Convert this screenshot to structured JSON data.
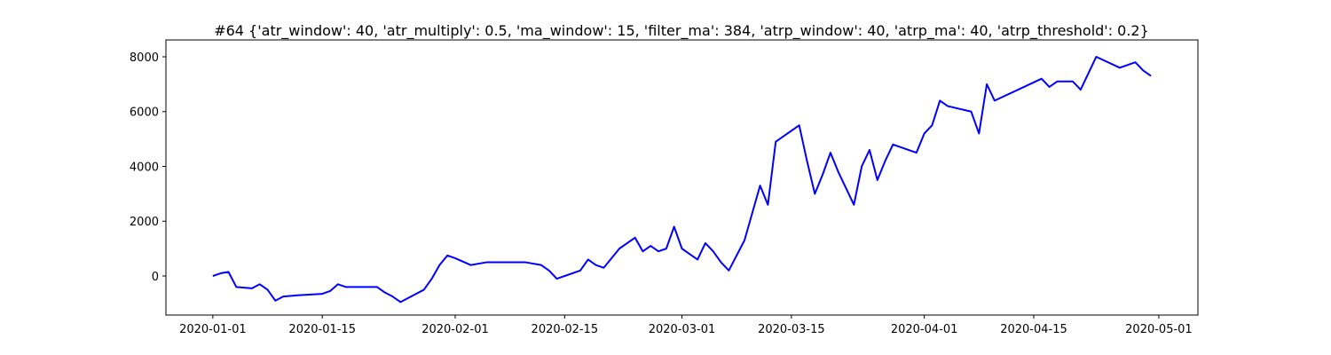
{
  "chart_data": {
    "type": "line",
    "title": "#64 {'atr_window': 40, 'atr_multiply': 0.5, 'ma_window': 15, 'filter_ma': 384, 'atrp_window': 40, 'atrp_ma': 40, 'atrp_threshold': 0.2}",
    "x": [
      "2020-01-01",
      "2020-01-02",
      "2020-01-03",
      "2020-01-04",
      "2020-01-06",
      "2020-01-07",
      "2020-01-08",
      "2020-01-09",
      "2020-01-10",
      "2020-01-12",
      "2020-01-15",
      "2020-01-16",
      "2020-01-17",
      "2020-01-18",
      "2020-01-22",
      "2020-01-23",
      "2020-01-24",
      "2020-01-25",
      "2020-01-26",
      "2020-01-28",
      "2020-01-29",
      "2020-01-30",
      "2020-01-31",
      "2020-02-01",
      "2020-02-03",
      "2020-02-05",
      "2020-02-08",
      "2020-02-10",
      "2020-02-12",
      "2020-02-13",
      "2020-02-14",
      "2020-02-15",
      "2020-02-17",
      "2020-02-18",
      "2020-02-19",
      "2020-02-20",
      "2020-02-22",
      "2020-02-24",
      "2020-02-25",
      "2020-02-26",
      "2020-02-27",
      "2020-02-28",
      "2020-02-29",
      "2020-03-01",
      "2020-03-02",
      "2020-03-03",
      "2020-03-04",
      "2020-03-05",
      "2020-03-06",
      "2020-03-07",
      "2020-03-09",
      "2020-03-10",
      "2020-03-11",
      "2020-03-12",
      "2020-03-13",
      "2020-03-16",
      "2020-03-17",
      "2020-03-18",
      "2020-03-19",
      "2020-03-20",
      "2020-03-21",
      "2020-03-23",
      "2020-03-24",
      "2020-03-25",
      "2020-03-26",
      "2020-03-27",
      "2020-03-28",
      "2020-03-31",
      "2020-04-01",
      "2020-04-02",
      "2020-04-03",
      "2020-04-04",
      "2020-04-07",
      "2020-04-08",
      "2020-04-09",
      "2020-04-10",
      "2020-04-13",
      "2020-04-16",
      "2020-04-17",
      "2020-04-18",
      "2020-04-20",
      "2020-04-21",
      "2020-04-23",
      "2020-04-26",
      "2020-04-28",
      "2020-04-29",
      "2020-04-30"
    ],
    "series": [
      {
        "color": "#0000ff",
        "values": [
          0,
          100,
          150,
          -400,
          -450,
          -300,
          -500,
          -900,
          -750,
          -700,
          -650,
          -550,
          -300,
          -400,
          -400,
          -600,
          -750,
          -950,
          -800,
          -500,
          -100,
          400,
          750,
          650,
          400,
          500,
          500,
          500,
          400,
          200,
          -100,
          0,
          200,
          600,
          400,
          300,
          1000,
          1400,
          900,
          1100,
          900,
          1000,
          1800,
          1000,
          800,
          600,
          1200,
          900,
          500,
          200,
          1300,
          2300,
          3300,
          2600,
          4900,
          5500,
          4200,
          3000,
          3700,
          4500,
          3800,
          2600,
          4000,
          4600,
          3500,
          4200,
          4800,
          4500,
          5200,
          5500,
          6400,
          6200,
          6000,
          5200,
          7000,
          6400,
          6800,
          7200,
          6900,
          7100,
          7100,
          6800,
          8000,
          7600,
          7800,
          7500,
          7300
        ]
      }
    ],
    "xlim": [
      "2019-12-26",
      "2020-05-06"
    ],
    "xticks": [
      "2020-01-01",
      "2020-01-15",
      "2020-02-01",
      "2020-02-15",
      "2020-03-01",
      "2020-03-15",
      "2020-04-01",
      "2020-04-15",
      "2020-05-01"
    ],
    "ylim": [
      -1425,
      8615
    ],
    "yticks": [
      0,
      2000,
      4000,
      6000,
      8000
    ]
  }
}
